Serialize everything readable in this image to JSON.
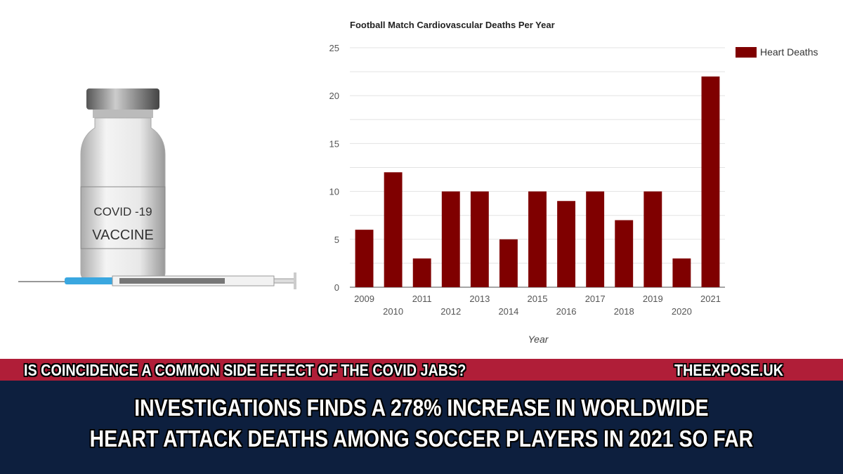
{
  "vial": {
    "label_line1": "COVID -19",
    "label_line2": "VACCINE"
  },
  "banner": {
    "tagline": "IS COINCIDENCE A COMMON SIDE EFFECT OF THE COVID JABS?",
    "site": "THEEXPOSE.UK",
    "headline_line1": "INVESTIGATIONS FINDS A 278% INCREASE IN WORLDWIDE",
    "headline_line2": "HEART ATTACK DEATHS AMONG SOCCER PLAYERS IN 2021 SO FAR"
  },
  "colors": {
    "bar": "#7f0000",
    "strip": "#b01e38",
    "navy": "#0d1f3e"
  },
  "chart_data": {
    "type": "bar",
    "title": "Football Match Cardiovascular Deaths Per Year",
    "xlabel": "Year",
    "ylabel": "",
    "ylim": [
      0,
      25
    ],
    "yticks": [
      "0",
      "5",
      "10",
      "15",
      "20",
      "25"
    ],
    "grid": true,
    "legend_position": "top-right",
    "categories": [
      "2009",
      "2010",
      "2011",
      "2012",
      "2013",
      "2014",
      "2015",
      "2016",
      "2017",
      "2018",
      "2019",
      "2020",
      "2021"
    ],
    "series": [
      {
        "name": "Heart Deaths",
        "values": [
          6,
          12,
          3,
          10,
          10,
          5,
          10,
          9,
          10,
          7,
          10,
          3,
          22
        ]
      }
    ]
  }
}
